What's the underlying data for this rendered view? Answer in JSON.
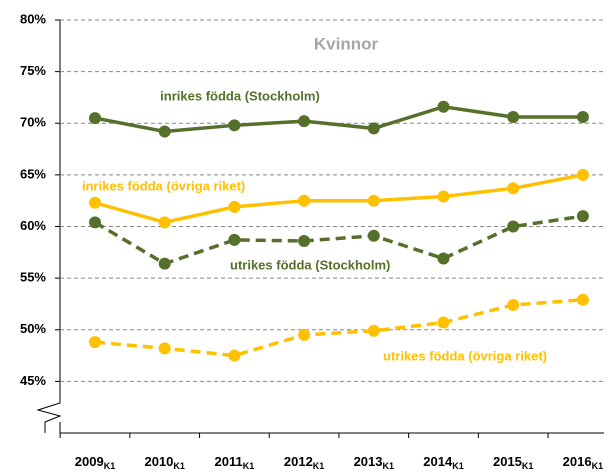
{
  "chart_data": {
    "type": "line",
    "annotations": [
      "Kvinnor"
    ],
    "categories": [
      "2009K1",
      "2010K1",
      "2011K1",
      "2012K1",
      "2013K1",
      "2014K1",
      "2015K1",
      "2016K1"
    ],
    "series": [
      {
        "name": "inrikes födda (Stockholm)",
        "color": "#55702a",
        "dashed": false,
        "values": [
          70.5,
          69.2,
          69.8,
          70.2,
          69.5,
          71.6,
          70.6,
          70.6
        ]
      },
      {
        "name": "inrikes födda (övriga riket)",
        "color": "#ffc000",
        "dashed": false,
        "values": [
          62.3,
          60.4,
          61.9,
          62.5,
          62.5,
          62.9,
          63.7,
          65.0
        ]
      },
      {
        "name": "utrikes födda (Stockholm)",
        "color": "#55702a",
        "dashed": true,
        "values": [
          60.4,
          56.4,
          58.7,
          58.6,
          59.1,
          56.9,
          60.0,
          61.0
        ]
      },
      {
        "name": "utrikes födda (övriga riket)",
        "color": "#ffc000",
        "dashed": true,
        "values": [
          48.8,
          48.2,
          47.5,
          49.5,
          49.9,
          50.7,
          52.4,
          52.9
        ]
      }
    ],
    "ylim": [
      40,
      80
    ],
    "yticks": [
      {
        "value": 45,
        "label": "45%"
      },
      {
        "value": 50,
        "label": "50%"
      },
      {
        "value": 55,
        "label": "55%"
      },
      {
        "value": 60,
        "label": "60%"
      },
      {
        "value": 65,
        "label": "65%"
      },
      {
        "value": 70,
        "label": "70%"
      },
      {
        "value": 75,
        "label": "75%"
      },
      {
        "value": 80,
        "label": "80%"
      }
    ],
    "grid": true
  }
}
